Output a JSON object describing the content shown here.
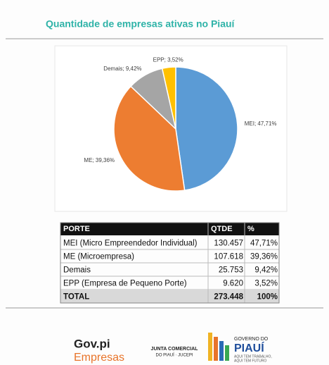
{
  "chart_data": {
    "type": "pie",
    "title": "Quantidade de empresas ativas  no Piauí",
    "values": [
      47.71,
      39.36,
      9.42,
      3.52
    ],
    "value_labels": [
      "MEI; 47,71%",
      "ME; 39,36%",
      "Demais; 9,42%",
      "EPP; 3,52%"
    ],
    "colors": [
      "#5b9bd5",
      "#ed7d31",
      "#a5a5a5",
      "#ffc000"
    ]
  },
  "table": {
    "header": [
      "PORTE",
      "QTDE",
      "%"
    ],
    "rows": [
      [
        "MEI (Micro Empreendedor Individual)",
        "130.457",
        "47,71%"
      ],
      [
        "ME (Microempresa)",
        "107.618",
        "39,36%"
      ],
      [
        "Demais",
        "25.753",
        "9,42%"
      ],
      [
        "EPP (Empresa de Pequeno Porte)",
        "9.620",
        "3,52%"
      ]
    ],
    "total": [
      "TOTAL",
      "273.448",
      "100%"
    ]
  },
  "footer": {
    "govpi": "Gov.pi",
    "empresas": "Empresas",
    "junta": "JUNTA COMERCIAL",
    "jucepi": "DO PIAUÍ · JUCEPI",
    "governo": "GOVERNO DO",
    "piaui": "PIAUÍ",
    "slogan1": "AQUI TEM TRABALHO,",
    "slogan2": "AQUI TEM FUTURO"
  }
}
